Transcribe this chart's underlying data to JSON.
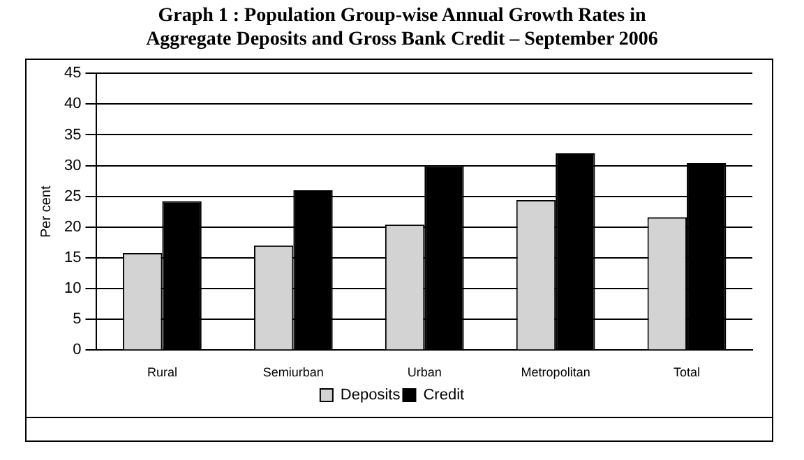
{
  "chart_data": {
    "type": "bar",
    "title": "Graph 1 : Population Group-wise Annual Growth Rates in Aggregate Deposits and Gross Bank Credit – September 2006",
    "ylabel": "Per cent",
    "categories": [
      "Rural",
      "Semiurban",
      "Urban",
      "Metropolitan",
      "Total"
    ],
    "series": [
      {
        "name": "Deposits",
        "color": "#d3d3d3",
        "values": [
          15.8,
          17.0,
          20.4,
          24.4,
          21.6
        ]
      },
      {
        "name": "Credit",
        "color": "#000000",
        "values": [
          24.2,
          26.0,
          30.0,
          32.0,
          30.4
        ]
      }
    ],
    "ylim": [
      0,
      45
    ],
    "yticks": [
      0,
      5,
      10,
      15,
      20,
      25,
      30,
      35,
      40,
      45
    ],
    "grid": "y",
    "legend": "bottom"
  }
}
